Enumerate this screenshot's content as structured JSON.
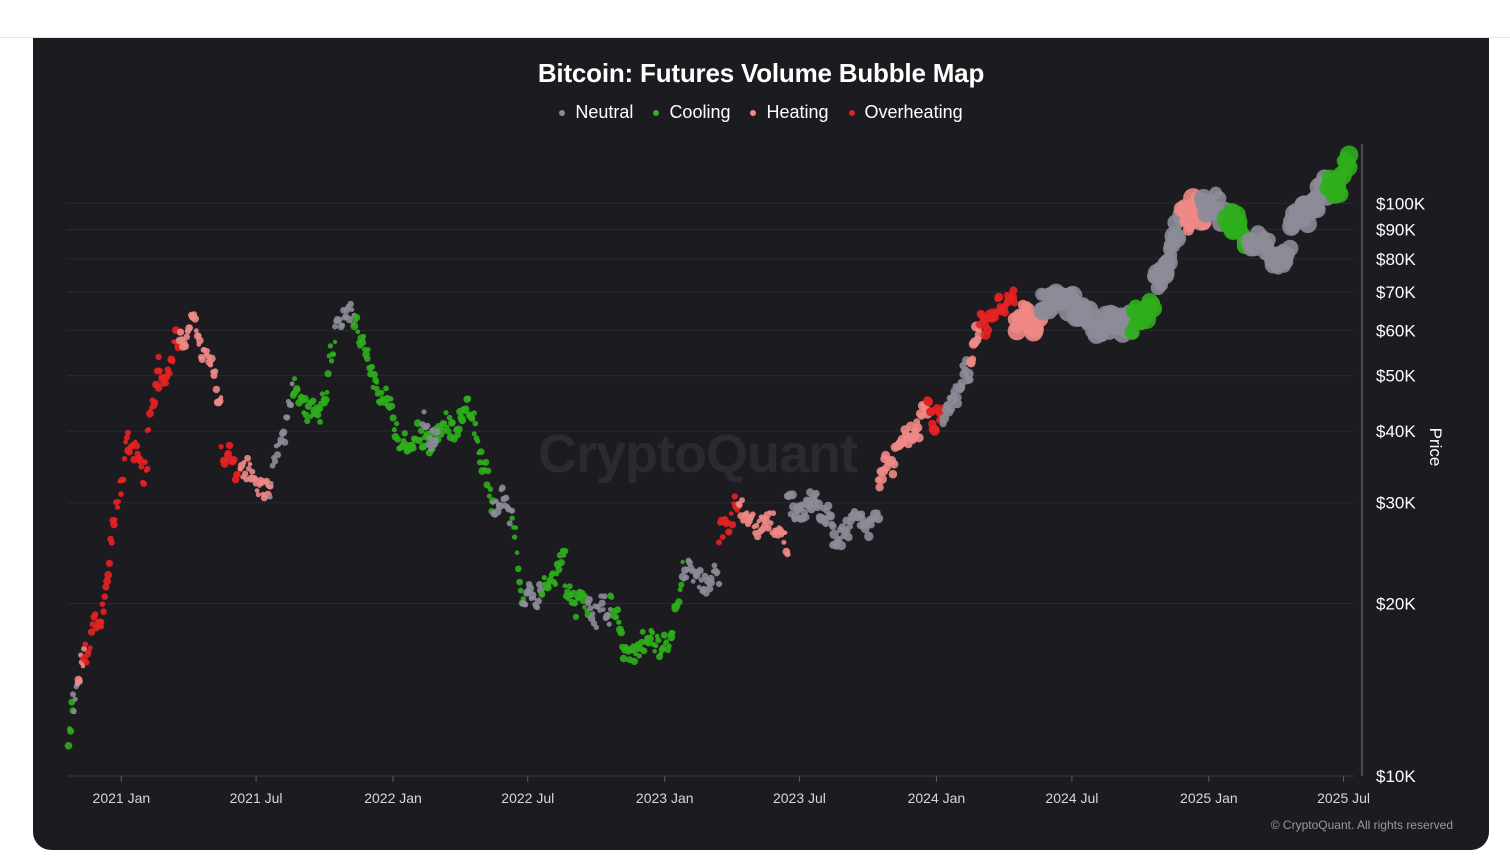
{
  "chart_data": {
    "type": "scatter",
    "title": "Bitcoin: Futures Volume Bubble Map",
    "ylabel": "Price",
    "y_scale": "log",
    "ylim": [
      10000,
      130000
    ],
    "xlim": [
      "2020-10-20",
      "2025-07-15"
    ],
    "grid": true,
    "legend_position": "top",
    "x_ticks": [
      {
        "date": "2021-01-01",
        "label": "2021 Jan"
      },
      {
        "date": "2021-07-01",
        "label": "2021 Jul"
      },
      {
        "date": "2022-01-01",
        "label": "2022 Jan"
      },
      {
        "date": "2022-07-01",
        "label": "2022 Jul"
      },
      {
        "date": "2023-01-01",
        "label": "2023 Jan"
      },
      {
        "date": "2023-07-01",
        "label": "2023 Jul"
      },
      {
        "date": "2024-01-01",
        "label": "2024 Jan"
      },
      {
        "date": "2024-07-01",
        "label": "2024 Jul"
      },
      {
        "date": "2025-01-01",
        "label": "2025 Jan"
      },
      {
        "date": "2025-07-01",
        "label": "2025 Jul"
      }
    ],
    "y_ticks": [
      {
        "value": 10000,
        "label": "$10K"
      },
      {
        "value": 20000,
        "label": "$20K"
      },
      {
        "value": 30000,
        "label": "$30K"
      },
      {
        "value": 40000,
        "label": "$40K"
      },
      {
        "value": 50000,
        "label": "$50K"
      },
      {
        "value": 60000,
        "label": "$60K"
      },
      {
        "value": 70000,
        "label": "$70K"
      },
      {
        "value": 80000,
        "label": "$80K"
      },
      {
        "value": 90000,
        "label": "$90K"
      },
      {
        "value": 100000,
        "label": "$100K"
      }
    ],
    "categories": [
      {
        "name": "Neutral",
        "color": "#8c8c98"
      },
      {
        "name": "Cooling",
        "color": "#2fae1c"
      },
      {
        "name": "Heating",
        "color": "#f08a86"
      },
      {
        "name": "Overheating",
        "color": "#e52222"
      }
    ],
    "series_segments": [
      {
        "start": "2020-10-22",
        "end": "2020-10-28",
        "y0": 11800,
        "y1": 13200,
        "category": "Cooling"
      },
      {
        "start": "2020-10-28",
        "end": "2020-11-03",
        "y0": 13300,
        "y1": 14500,
        "category": "Neutral"
      },
      {
        "start": "2020-11-03",
        "end": "2020-11-12",
        "y0": 14600,
        "y1": 16500,
        "category": "Heating"
      },
      {
        "start": "2020-11-12",
        "end": "2020-12-05",
        "y0": 16500,
        "y1": 19200,
        "category": "Overheating"
      },
      {
        "start": "2020-12-05",
        "end": "2021-01-10",
        "y0": 19200,
        "y1": 40000,
        "category": "Overheating"
      },
      {
        "start": "2021-01-10",
        "end": "2021-02-05",
        "y0": 38000,
        "y1": 33000,
        "category": "Overheating"
      },
      {
        "start": "2021-02-05",
        "end": "2021-02-20",
        "y0": 40000,
        "y1": 51000,
        "category": "Overheating"
      },
      {
        "start": "2021-02-20",
        "end": "2021-03-20",
        "y0": 48000,
        "y1": 58000,
        "category": "Overheating"
      },
      {
        "start": "2021-03-20",
        "end": "2021-04-15",
        "y0": 58000,
        "y1": 62000,
        "category": "Heating"
      },
      {
        "start": "2021-04-15",
        "end": "2021-05-15",
        "y0": 58000,
        "y1": 46000,
        "category": "Heating"
      },
      {
        "start": "2021-05-15",
        "end": "2021-06-10",
        "y0": 37000,
        "y1": 34000,
        "category": "Overheating"
      },
      {
        "start": "2021-06-10",
        "end": "2021-07-20",
        "y0": 35000,
        "y1": 31000,
        "category": "Heating"
      },
      {
        "start": "2021-07-20",
        "end": "2021-08-20",
        "y0": 32000,
        "y1": 47000,
        "category": "Neutral"
      },
      {
        "start": "2021-08-20",
        "end": "2021-09-25",
        "y0": 47000,
        "y1": 42000,
        "category": "Cooling"
      },
      {
        "start": "2021-09-25",
        "end": "2021-10-15",
        "y0": 44000,
        "y1": 57000,
        "category": "Cooling"
      },
      {
        "start": "2021-10-15",
        "end": "2021-11-10",
        "y0": 61000,
        "y1": 66000,
        "category": "Neutral"
      },
      {
        "start": "2021-11-10",
        "end": "2021-12-10",
        "y0": 64000,
        "y1": 49000,
        "category": "Cooling"
      },
      {
        "start": "2021-12-10",
        "end": "2022-01-20",
        "y0": 49000,
        "y1": 37000,
        "category": "Cooling"
      },
      {
        "start": "2022-01-20",
        "end": "2022-03-10",
        "y0": 38000,
        "y1": 40000,
        "category": "Cooling"
      },
      {
        "start": "2022-02-10",
        "end": "2022-03-01",
        "y0": 42000,
        "y1": 38000,
        "category": "Neutral"
      },
      {
        "start": "2022-03-10",
        "end": "2022-04-20",
        "y0": 40000,
        "y1": 44000,
        "category": "Cooling"
      },
      {
        "start": "2022-04-20",
        "end": "2022-05-15",
        "y0": 40000,
        "y1": 30000,
        "category": "Cooling"
      },
      {
        "start": "2022-05-15",
        "end": "2022-06-10",
        "y0": 30000,
        "y1": 29500,
        "category": "Neutral"
      },
      {
        "start": "2022-06-10",
        "end": "2022-06-25",
        "y0": 29000,
        "y1": 20000,
        "category": "Cooling"
      },
      {
        "start": "2022-06-25",
        "end": "2022-07-20",
        "y0": 20000,
        "y1": 21000,
        "category": "Neutral"
      },
      {
        "start": "2022-07-20",
        "end": "2022-08-20",
        "y0": 21000,
        "y1": 24000,
        "category": "Cooling"
      },
      {
        "start": "2022-08-20",
        "end": "2022-09-20",
        "y0": 21000,
        "y1": 19500,
        "category": "Cooling"
      },
      {
        "start": "2022-09-20",
        "end": "2022-10-20",
        "y0": 19500,
        "y1": 19300,
        "category": "Neutral"
      },
      {
        "start": "2022-10-20",
        "end": "2022-11-10",
        "y0": 20500,
        "y1": 16500,
        "category": "Cooling"
      },
      {
        "start": "2022-11-10",
        "end": "2023-01-10",
        "y0": 16500,
        "y1": 17500,
        "category": "Cooling"
      },
      {
        "start": "2023-01-10",
        "end": "2023-01-25",
        "y0": 18000,
        "y1": 22500,
        "category": "Cooling"
      },
      {
        "start": "2023-01-25",
        "end": "2023-03-15",
        "y0": 22500,
        "y1": 22000,
        "category": "Neutral"
      },
      {
        "start": "2023-03-15",
        "end": "2023-04-10",
        "y0": 26000,
        "y1": 29500,
        "category": "Overheating"
      },
      {
        "start": "2023-04-10",
        "end": "2023-06-15",
        "y0": 29000,
        "y1": 26000,
        "category": "Heating"
      },
      {
        "start": "2023-06-15",
        "end": "2023-08-15",
        "y0": 30000,
        "y1": 29000,
        "category": "Neutral"
      },
      {
        "start": "2023-08-15",
        "end": "2023-10-15",
        "y0": 26500,
        "y1": 28000,
        "category": "Neutral"
      },
      {
        "start": "2023-10-15",
        "end": "2023-11-10",
        "y0": 33000,
        "y1": 37000,
        "category": "Heating"
      },
      {
        "start": "2023-11-10",
        "end": "2023-12-20",
        "y0": 37000,
        "y1": 43000,
        "category": "Heating"
      },
      {
        "start": "2023-12-20",
        "end": "2024-01-10",
        "y0": 43000,
        "y1": 42000,
        "category": "Overheating"
      },
      {
        "start": "2024-01-10",
        "end": "2024-02-15",
        "y0": 42000,
        "y1": 52000,
        "category": "Neutral"
      },
      {
        "start": "2024-02-15",
        "end": "2024-02-28",
        "y0": 52000,
        "y1": 61000,
        "category": "Heating"
      },
      {
        "start": "2024-02-28",
        "end": "2024-04-15",
        "y0": 62000,
        "y1": 69000,
        "category": "Overheating"
      },
      {
        "start": "2024-04-15",
        "end": "2024-05-20",
        "y0": 64000,
        "y1": 62000,
        "category": "Heating"
      },
      {
        "start": "2024-05-20",
        "end": "2024-09-20",
        "y0": 68000,
        "y1": 60000,
        "category": "Neutral"
      },
      {
        "start": "2024-09-20",
        "end": "2024-10-20",
        "y0": 62000,
        "y1": 67000,
        "category": "Cooling"
      },
      {
        "start": "2024-10-20",
        "end": "2024-11-25",
        "y0": 70000,
        "y1": 93000,
        "category": "Neutral"
      },
      {
        "start": "2024-11-25",
        "end": "2024-12-25",
        "y0": 95000,
        "y1": 98000,
        "category": "Heating"
      },
      {
        "start": "2024-12-25",
        "end": "2025-01-25",
        "y0": 100000,
        "y1": 96000,
        "category": "Neutral"
      },
      {
        "start": "2025-01-25",
        "end": "2025-02-25",
        "y0": 96000,
        "y1": 86000,
        "category": "Cooling"
      },
      {
        "start": "2025-02-25",
        "end": "2025-04-20",
        "y0": 85000,
        "y1": 80000,
        "category": "Neutral"
      },
      {
        "start": "2025-04-20",
        "end": "2025-06-10",
        "y0": 90000,
        "y1": 106000,
        "category": "Neutral"
      },
      {
        "start": "2025-06-10",
        "end": "2025-07-10",
        "y0": 102000,
        "y1": 118000,
        "category": "Cooling"
      }
    ]
  },
  "footer": {
    "watermark": "CryptoQuant",
    "copyright": "© CryptoQuant. All rights reserved"
  }
}
